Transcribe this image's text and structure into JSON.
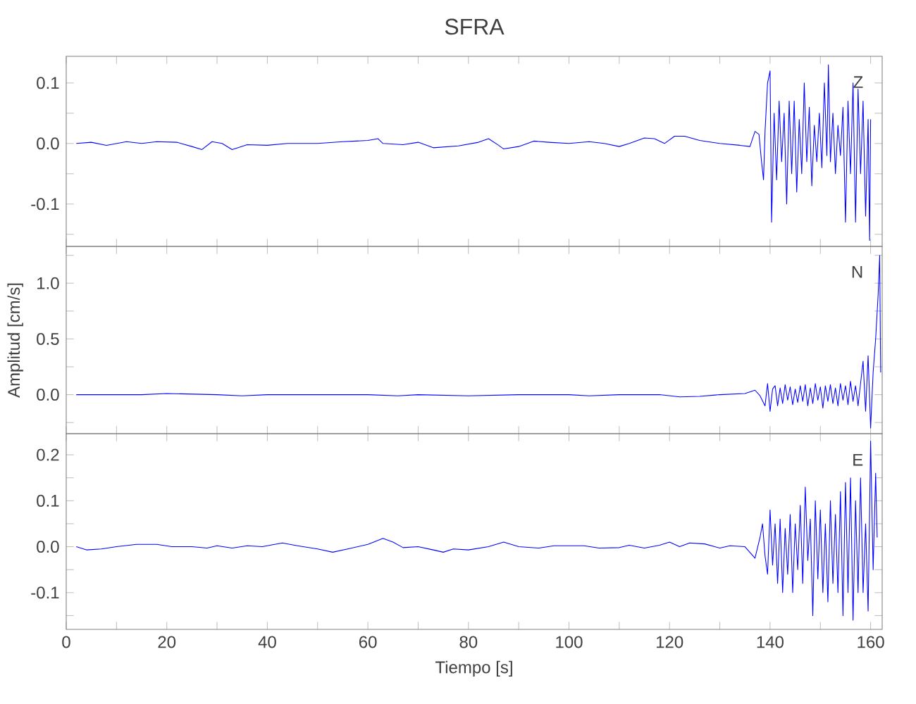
{
  "chart_data": [
    {
      "type": "line",
      "title": "SFRA",
      "annotations": [
        "Z"
      ],
      "color": "#0000ff",
      "tick_labels": "y",
      "xlim": [
        0,
        162.3
      ],
      "ylim": [
        -0.17,
        0.144
      ],
      "xticks": [
        0,
        {
          "value": 10,
          "label": null
        },
        20,
        {
          "value": 30,
          "label": null
        },
        40,
        {
          "value": 50,
          "label": null
        },
        60,
        {
          "value": 70,
          "label": null
        },
        80,
        {
          "value": 90,
          "label": null
        },
        100,
        {
          "value": 110,
          "label": null
        },
        120,
        {
          "value": 130,
          "label": null
        },
        140,
        {
          "value": 150,
          "label": null
        },
        160
      ],
      "yticks": [
        {
          "value": -0.15,
          "label": null
        },
        -0.1,
        {
          "value": -0.05,
          "label": null
        },
        {
          "value": 0,
          "label": "0.0"
        },
        {
          "value": 0.05,
          "label": null
        },
        0.1
      ],
      "x": [
        2,
        5,
        8,
        12,
        15,
        18,
        22,
        25,
        27,
        29,
        31,
        33,
        36,
        40,
        44,
        50,
        55,
        60,
        62,
        63,
        67,
        70,
        73,
        78,
        82,
        84,
        86,
        87,
        90,
        93,
        96,
        100,
        104,
        107,
        110,
        112,
        115,
        117,
        119,
        121,
        123,
        126,
        130,
        134,
        136,
        137,
        137.8,
        138.3,
        138.7,
        139,
        139.5,
        140,
        140.3,
        140.8,
        141.3,
        141.8,
        142.3,
        142.8,
        143.3,
        143.8,
        144.3,
        144.8,
        145.3,
        145.8,
        146.3,
        146.8,
        147.3,
        147.8,
        148.3,
        148.8,
        149.3,
        149.8,
        150.3,
        150.8,
        151.3,
        151.6,
        152,
        152.5,
        153,
        153.5,
        154,
        154.5,
        155,
        155.5,
        156,
        156.5,
        157,
        157.5,
        158,
        158.5,
        159,
        159.5,
        159.8,
        160
      ],
      "values": [
        0,
        0.002,
        -0.003,
        0.003,
        0,
        0.003,
        0.002,
        -0.005,
        -0.01,
        0.003,
        0,
        -0.01,
        -0.002,
        -0.003,
        0,
        0,
        0.003,
        0.005,
        0.008,
        0,
        -0.002,
        0.002,
        -0.007,
        -0.004,
        0.002,
        0.008,
        -0.003,
        -0.009,
        -0.005,
        0.004,
        0.002,
        0,
        0.003,
        0,
        -0.005,
        0,
        0.009,
        0.008,
        0,
        0.012,
        0.012,
        0.005,
        0,
        -0.003,
        -0.005,
        0.02,
        0.015,
        -0.03,
        -0.06,
        0.02,
        0.1,
        0.12,
        -0.13,
        0.05,
        -0.06,
        0.07,
        -0.03,
        0.05,
        -0.1,
        0.07,
        -0.05,
        0.07,
        -0.08,
        0.04,
        -0.05,
        0.1,
        -0.03,
        0.06,
        -0.07,
        0.03,
        -0.03,
        0.05,
        -0.04,
        0.1,
        -0.02,
        0.13,
        -0.03,
        0.05,
        -0.05,
        0.03,
        -0.02,
        0.06,
        -0.13,
        0.07,
        -0.05,
        0.1,
        -0.13,
        0.09,
        -0.05,
        0.07,
        -0.12,
        0.04,
        -0.16,
        0.04
      ]
    },
    {
      "type": "line",
      "ylabel": "Amplitud [cm/s]",
      "annotations": [
        "N"
      ],
      "color": "#0000ff",
      "tick_labels": "y",
      "xlim": [
        0,
        162.3
      ],
      "ylim": [
        -0.35,
        1.33
      ],
      "xticks": [
        0,
        {
          "value": 10,
          "label": null
        },
        20,
        {
          "value": 30,
          "label": null
        },
        40,
        {
          "value": 50,
          "label": null
        },
        60,
        {
          "value": 70,
          "label": null
        },
        80,
        {
          "value": 90,
          "label": null
        },
        100,
        {
          "value": 110,
          "label": null
        },
        120,
        {
          "value": 130,
          "label": null
        },
        140,
        {
          "value": 150,
          "label": null
        },
        160
      ],
      "yticks": [
        {
          "value": -0.25,
          "label": null
        },
        {
          "value": 0,
          "label": "0.0"
        },
        {
          "value": 0.25,
          "label": null
        },
        0.5,
        {
          "value": 0.75,
          "label": null
        },
        {
          "value": 1,
          "label": "1.0"
        },
        {
          "value": 1.25,
          "label": null
        }
      ],
      "x": [
        2,
        10,
        15,
        20,
        25,
        30,
        35,
        40,
        50,
        60,
        66,
        70,
        80,
        90,
        100,
        104,
        110,
        118,
        122,
        126,
        130,
        135,
        137,
        138,
        139,
        139.5,
        140,
        140.5,
        141,
        141.5,
        142,
        142.5,
        143,
        143.5,
        144,
        144.5,
        145,
        145.5,
        146,
        146.5,
        147,
        147.5,
        148,
        148.5,
        149,
        149.5,
        150,
        150.5,
        151,
        151.5,
        152,
        152.5,
        153,
        153.5,
        154,
        154.5,
        155,
        155.5,
        156,
        156.5,
        157,
        157.5,
        158,
        158.5,
        159,
        159.5,
        160,
        160.5,
        161,
        161.5,
        161.8,
        162
      ],
      "values": [
        0,
        0,
        0,
        0.01,
        0.005,
        0,
        -0.01,
        0,
        0,
        0,
        -0.01,
        0,
        -0.01,
        0,
        0,
        -0.01,
        0,
        0,
        -0.02,
        -0.015,
        0,
        0.01,
        0.04,
        -0.01,
        -0.1,
        0.1,
        -0.15,
        0.05,
        0.08,
        -0.1,
        0.06,
        -0.08,
        0.09,
        -0.05,
        0.07,
        -0.09,
        0.05,
        -0.07,
        0.08,
        -0.06,
        0.09,
        -0.1,
        0.06,
        -0.08,
        0.1,
        -0.05,
        0.07,
        -0.12,
        0.08,
        -0.06,
        0.09,
        -0.08,
        0.06,
        -0.1,
        0.1,
        -0.05,
        0.08,
        -0.09,
        0.12,
        -0.06,
        0.08,
        -0.1,
        0.1,
        0.3,
        -0.15,
        0.35,
        -0.3,
        0.2,
        0.5,
        0.9,
        1.25,
        0.2
      ]
    },
    {
      "type": "line",
      "xlabel": "Tiempo [s]",
      "annotations": [
        "E"
      ],
      "color": "#0000ff",
      "xlim": [
        0,
        162.3
      ],
      "ylim": [
        -0.18,
        0.246
      ],
      "xticks": [
        0,
        {
          "value": 10,
          "label": null
        },
        20,
        {
          "value": 30,
          "label": null
        },
        40,
        {
          "value": 50,
          "label": null
        },
        60,
        {
          "value": 70,
          "label": null
        },
        80,
        {
          "value": 90,
          "label": null
        },
        100,
        {
          "value": 110,
          "label": null
        },
        120,
        {
          "value": 130,
          "label": null
        },
        140,
        {
          "value": 150,
          "label": null
        },
        160
      ],
      "yticks": [
        {
          "value": -0.15,
          "label": null
        },
        -0.1,
        {
          "value": -0.05,
          "label": null
        },
        {
          "value": 0,
          "label": "0.0"
        },
        {
          "value": 0.05,
          "label": null
        },
        0.1,
        {
          "value": 0.15,
          "label": null
        },
        0.2
      ],
      "x": [
        2,
        4,
        7,
        10,
        14,
        18,
        21,
        25,
        28,
        30,
        33,
        36,
        39,
        43,
        46,
        50,
        53,
        56,
        60,
        63,
        65,
        67,
        70,
        73,
        75,
        77,
        80,
        84,
        87,
        90,
        94,
        97,
        100,
        103,
        106,
        110,
        112,
        115,
        118,
        120,
        122,
        124,
        127,
        130,
        132,
        135,
        137,
        138,
        138.5,
        139,
        139.5,
        140,
        140.5,
        141,
        141.5,
        142,
        142.5,
        143,
        143.5,
        144,
        144.5,
        145,
        145.5,
        146,
        146.5,
        147,
        147.5,
        148,
        148.5,
        149,
        149.5,
        150,
        150.5,
        151,
        151.5,
        152,
        152.5,
        153,
        153.5,
        154,
        154.5,
        155,
        155.5,
        156,
        156.5,
        157,
        157.5,
        158,
        158.5,
        159,
        159.5,
        160,
        160.5,
        161,
        161.3
      ],
      "values": [
        0,
        -0.007,
        -0.005,
        0,
        0.005,
        0.005,
        0,
        0,
        -0.003,
        0.002,
        -0.003,
        0.002,
        0,
        0.008,
        0.002,
        -0.005,
        -0.012,
        -0.005,
        0.005,
        0.018,
        0.01,
        -0.002,
        0,
        -0.007,
        -0.012,
        -0.005,
        -0.007,
        0,
        0.01,
        0,
        -0.003,
        0.002,
        0.002,
        0.002,
        -0.003,
        -0.002,
        0.003,
        -0.003,
        0.003,
        0.01,
        0,
        0.008,
        0.006,
        -0.003,
        0.002,
        0,
        -0.025,
        0.02,
        0.05,
        -0.02,
        -0.06,
        0.08,
        -0.04,
        0.05,
        -0.08,
        0.06,
        -0.1,
        0.04,
        -0.06,
        0.07,
        -0.1,
        0.05,
        -0.05,
        0.09,
        -0.08,
        0.13,
        -0.03,
        0.06,
        -0.15,
        0.1,
        -0.07,
        0.08,
        -0.1,
        0.05,
        -0.12,
        0.1,
        -0.08,
        0.07,
        -0.1,
        0.12,
        -0.15,
        0.14,
        -0.1,
        0.15,
        -0.16,
        0.1,
        -0.1,
        0.15,
        -0.1,
        0.05,
        -0.14,
        0.23,
        -0.05,
        0.16,
        0.02
      ]
    }
  ]
}
